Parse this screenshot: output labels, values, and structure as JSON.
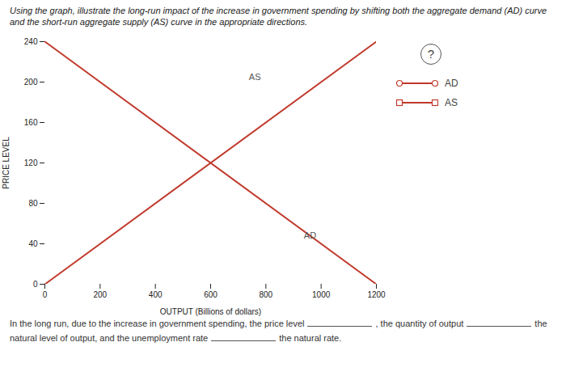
{
  "chart_data": {
    "type": "line",
    "title": "Using the graph, illustrate the long-run impact of the increase in government spending by shifting both the aggregate demand (AD) curve and the short-run aggregate supply (AS) curve in the appropriate directions.",
    "xlabel": "OUTPUT (Billions of dollars)",
    "ylabel": "PRICE LEVEL",
    "xlim": [
      0,
      1200
    ],
    "ylim": [
      0,
      240
    ],
    "xticks": [
      0,
      200,
      400,
      600,
      800,
      1000,
      1200
    ],
    "yticks": [
      0,
      40,
      80,
      120,
      160,
      200,
      240
    ],
    "grid": false,
    "legend": "right",
    "series": [
      {
        "name": "AD",
        "color": "#c0392b",
        "marker": "circle",
        "x": [
          0,
          1200
        ],
        "values": [
          240,
          0
        ]
      },
      {
        "name": "AS",
        "color": "#c0392b",
        "marker": "square",
        "x": [
          0,
          1200
        ],
        "values": [
          0,
          240
        ]
      }
    ],
    "annotations": [
      {
        "text": "AD",
        "x": 960,
        "y": 48
      },
      {
        "text": "AS",
        "x": 760,
        "y": 205
      }
    ],
    "help_mark": "?",
    "caption": [
      "In the long run, due to the increase in government spending, the price level",
      ", the quantity of output",
      "the",
      "natural level of output, and the unemployment rate",
      "the natural rate."
    ]
  }
}
